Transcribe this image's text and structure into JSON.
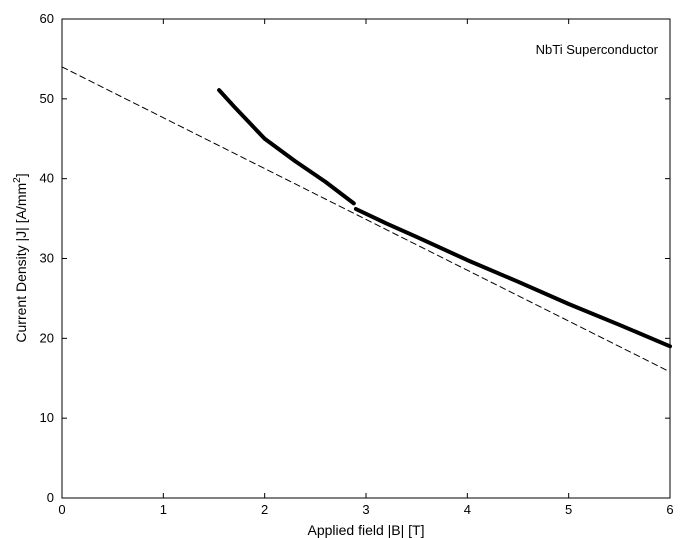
{
  "chart_data": {
    "type": "line",
    "title": "",
    "annotation": "NbTi Superconductor",
    "xlabel": "Applied field |B| [T]",
    "ylabel_main": "Current Density |J| [A/mm",
    "ylabel_sup": "2",
    "ylabel_end": "]",
    "xlim": [
      0,
      6
    ],
    "ylim": [
      0,
      60
    ],
    "x_ticks": [
      0,
      1,
      2,
      3,
      4,
      5,
      6
    ],
    "y_ticks": [
      0,
      10,
      20,
      30,
      40,
      50,
      60
    ],
    "grid": false,
    "series": [
      {
        "style": "solid-thick",
        "color": "#000000",
        "x": [
          1.55,
          1.7,
          1.85,
          2.0,
          2.3,
          2.6,
          2.88
        ],
        "y": [
          51.1,
          49.0,
          47.0,
          45.0,
          42.2,
          39.6,
          36.9
        ]
      },
      {
        "style": "solid-thick",
        "color": "#000000",
        "x": [
          2.9,
          3.2,
          3.5,
          4.0,
          4.5,
          5.0,
          5.5,
          6.0
        ],
        "y": [
          36.2,
          34.4,
          32.7,
          29.8,
          27.1,
          24.3,
          21.7,
          19.0
        ]
      },
      {
        "style": "dashed",
        "color": "#000000",
        "x": [
          0,
          6
        ],
        "y": [
          54.0,
          15.8
        ]
      }
    ]
  }
}
